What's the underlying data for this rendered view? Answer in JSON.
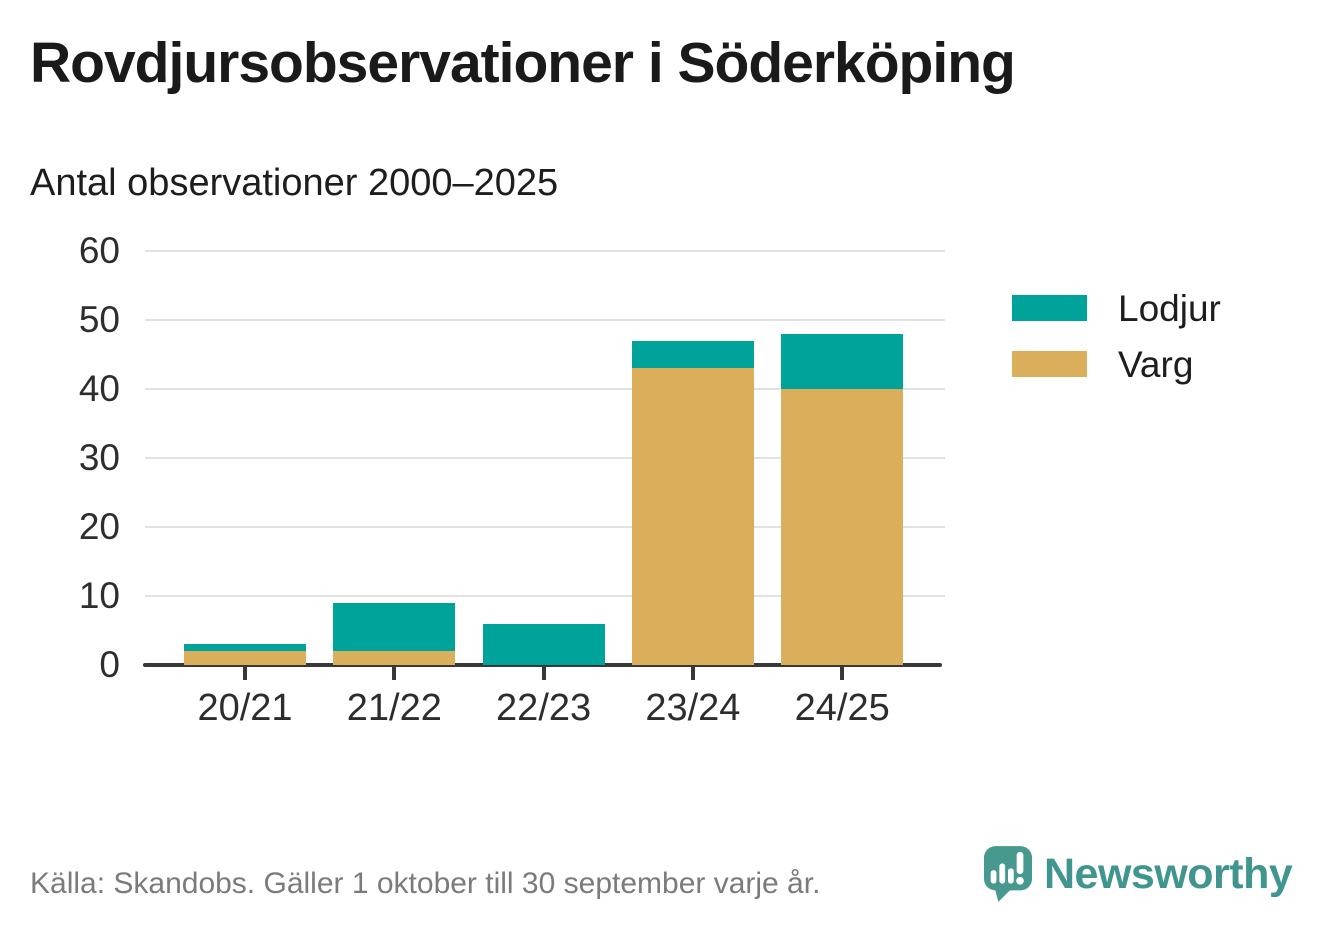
{
  "chart_data": {
    "type": "bar",
    "stacked": true,
    "title": "Rovdjursobservationer i Söderköping",
    "subtitle": "Antal observationer 2000–2025",
    "categories": [
      "20/21",
      "21/22",
      "22/23",
      "23/24",
      "24/25"
    ],
    "series": [
      {
        "name": "Varg",
        "color": "#dbae5b",
        "values": [
          2,
          2,
          0,
          43,
          40
        ]
      },
      {
        "name": "Lodjur",
        "color": "#00a39a",
        "values": [
          1,
          7,
          6,
          4,
          8
        ]
      }
    ],
    "totals": [
      3,
      9,
      6,
      47,
      48
    ],
    "xlabel": "",
    "ylabel": "",
    "ylim": [
      0,
      60
    ],
    "ytick_step": 10,
    "grid": true,
    "legend_position": "right"
  },
  "legend": {
    "items": [
      {
        "label": "Lodjur",
        "color": "#00a39a"
      },
      {
        "label": "Varg",
        "color": "#dbae5b"
      }
    ]
  },
  "footer": {
    "source": "Källa: Skandobs. Gäller 1 oktober till 30 september varje år.",
    "brand": "Newsworthy"
  },
  "colors": {
    "axis": "#383838",
    "gridline": "#e2e2e2",
    "brand_teal": "#40968f"
  }
}
